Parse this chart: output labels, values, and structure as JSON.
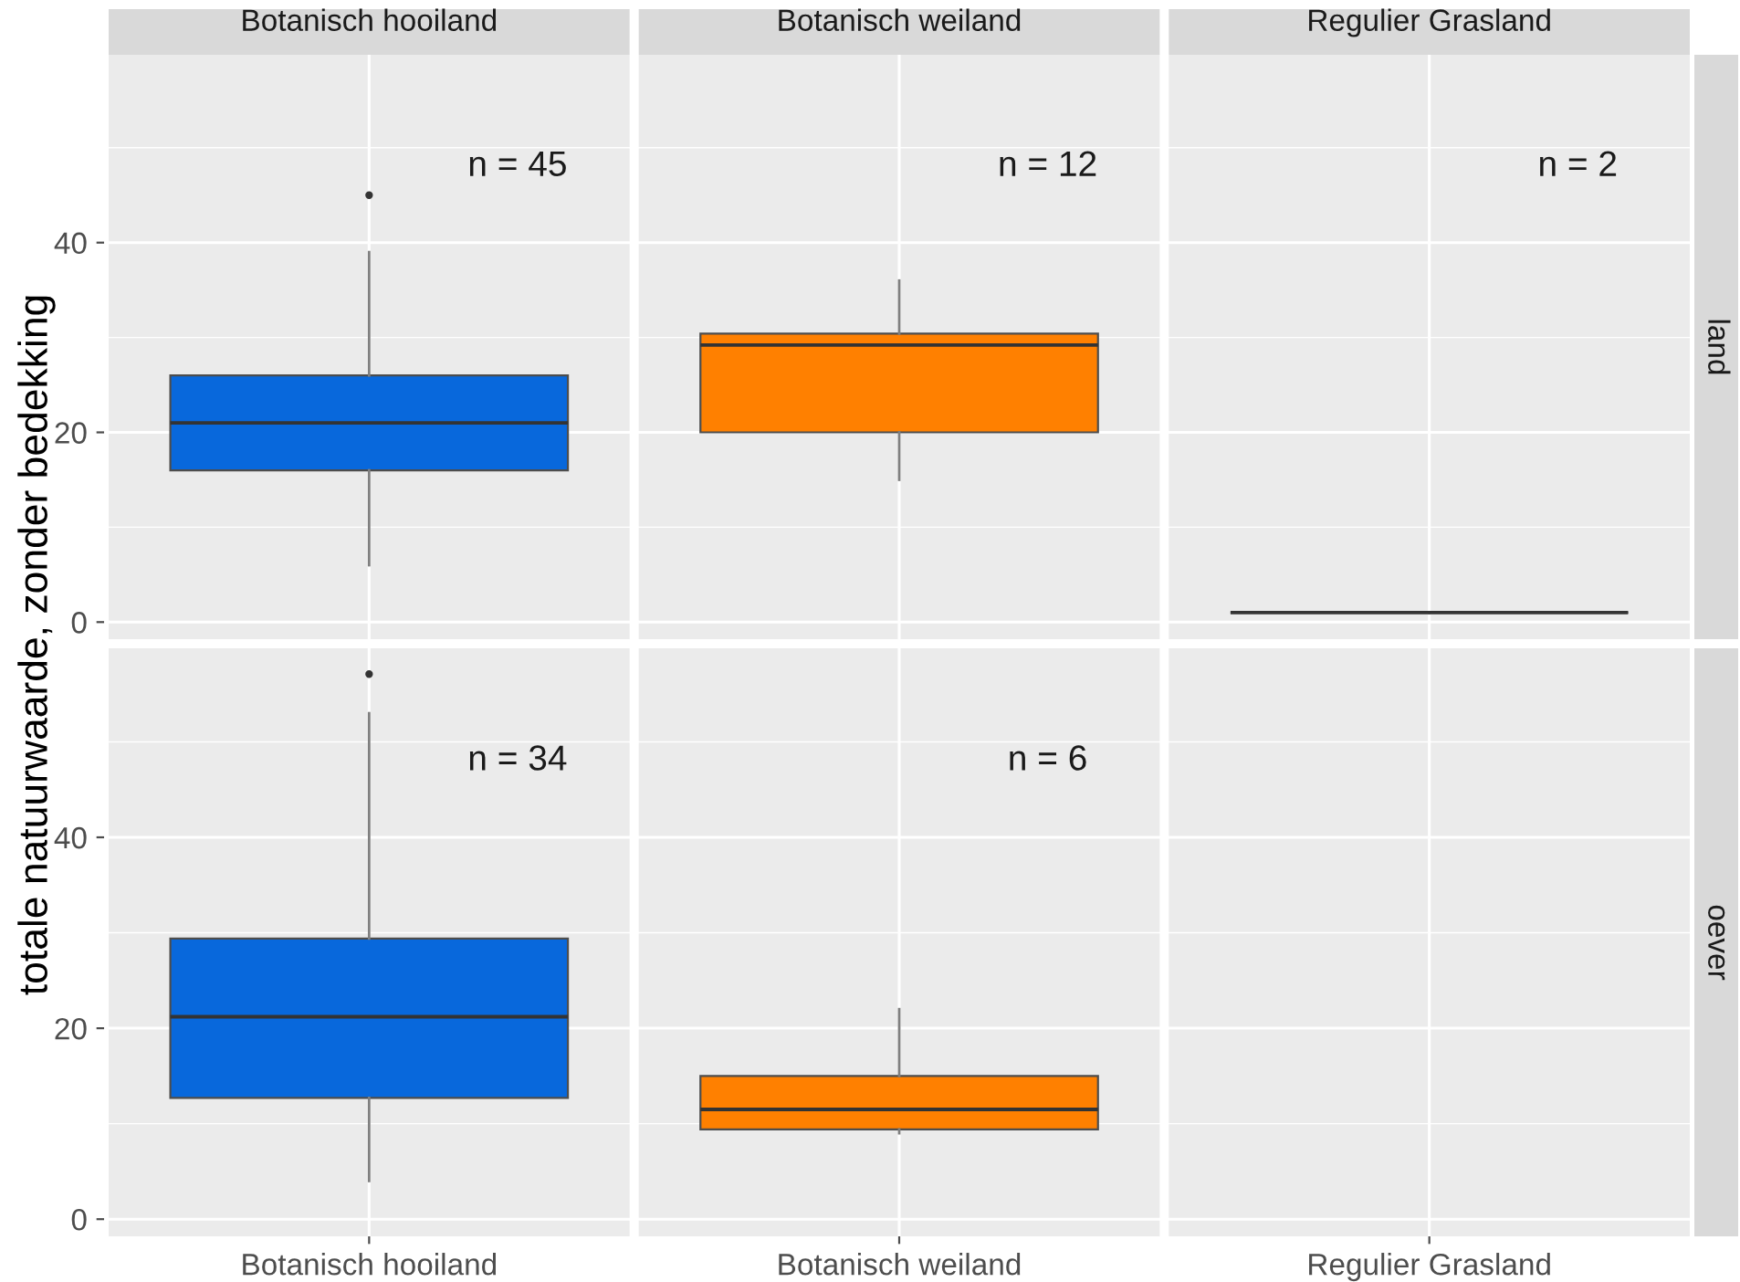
{
  "chart_data": [
    {
      "type": "box",
      "ylabel": "totale natuurwaarde, zonder bedekking",
      "y2label": "land",
      "categories": [
        "Botanisch hooiland",
        "Botanisch weiland",
        "Regulier Grasland"
      ],
      "colors": [
        "#0868dc",
        "#ff8000",
        "#4d4d4d"
      ],
      "boxes": [
        {
          "low": 6,
          "q1": 16,
          "median": 21,
          "q3": 26,
          "high": 39,
          "outliers": [
            45
          ]
        },
        {
          "low": 15,
          "q1": 20,
          "median": 29.2,
          "q3": 30.4,
          "high": 36
        },
        {
          "low": 1,
          "q1": 1,
          "median": 1,
          "q3": 1,
          "high": 1
        }
      ],
      "ylim": [
        -1.8,
        59.8
      ],
      "yticks": [
        0,
        {
          "value": 10,
          "label": null
        },
        20,
        {
          "value": 30,
          "label": null
        },
        40,
        {
          "value": 50,
          "label": null
        }
      ],
      "grid": true,
      "annotations": [
        "n = 45",
        "n = 12",
        "n = 2"
      ]
    },
    {
      "type": "box",
      "y2label": "oever",
      "categories": [
        "Botanisch hooiland",
        "Botanisch weiland",
        "Regulier Grasland"
      ],
      "colors": [
        "#0868dc",
        "#ff8000",
        null
      ],
      "boxes": [
        {
          "low": 4,
          "q1": 12.7,
          "median": 21.2,
          "q3": 29.4,
          "high": 53,
          "outliers": [
            57.1
          ]
        },
        {
          "low": 9,
          "q1": 9.4,
          "median": 11.5,
          "q3": 15,
          "high": 22
        },
        null
      ],
      "ylim": [
        -1.8,
        59.8
      ],
      "yticks": [
        0,
        {
          "value": 10,
          "label": null
        },
        20,
        {
          "value": 30,
          "label": null
        },
        40,
        {
          "value": 50,
          "label": null
        }
      ],
      "grid": true,
      "annotations": [
        "n = 34",
        "n = 6"
      ]
    }
  ]
}
